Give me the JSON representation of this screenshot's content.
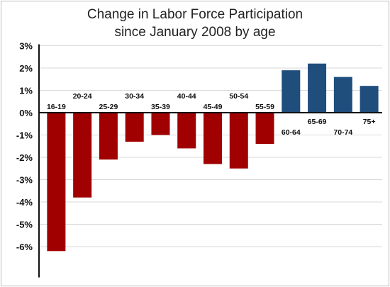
{
  "chart_data": {
    "type": "bar",
    "title": "Change in Labor Force Participation",
    "subtitle": "since January 2008 by age",
    "xlabel": "",
    "ylabel": "",
    "ylim": [
      -7,
      3
    ],
    "yticks": [
      3,
      2,
      1,
      0,
      -1,
      -2,
      -3,
      -4,
      -5,
      -6
    ],
    "ytick_labels": [
      "3%",
      "2%",
      "1%",
      "0%",
      "-1%",
      "-2%",
      "-3%",
      "-4%",
      "-5%",
      "-6%"
    ],
    "grid": true,
    "categories": [
      "16-19",
      "20-24",
      "25-29",
      "30-34",
      "35-39",
      "40-44",
      "45-49",
      "50-54",
      "55-59",
      "60-64",
      "65-69",
      "70-74",
      "75+"
    ],
    "values": [
      -6.2,
      -3.8,
      -2.1,
      -1.3,
      -1.0,
      -1.6,
      -2.3,
      -2.5,
      -1.4,
      1.9,
      2.2,
      1.6,
      1.2
    ],
    "colors": {
      "negative": "#a00000",
      "positive": "#1f4e7d"
    }
  }
}
